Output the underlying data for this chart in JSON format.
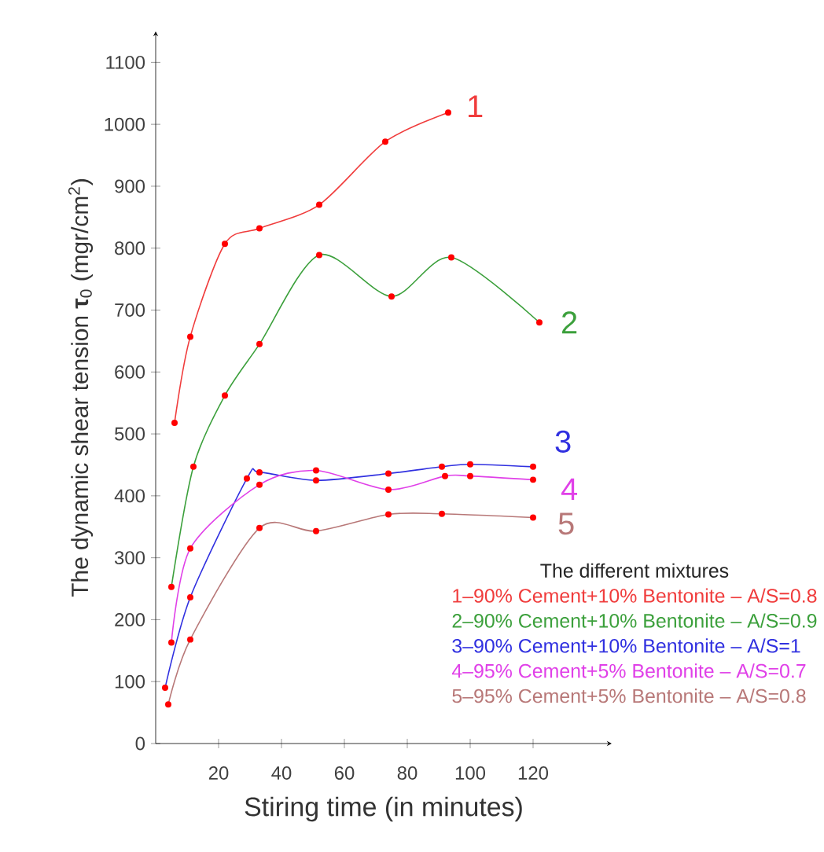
{
  "chart_data": {
    "type": "line",
    "xlabel": "Stiring time (in minutes)",
    "ylabel": "The dynamic shear tension **τ**$_{0}$ (mgr/cm$^{2}$)",
    "legend_title": "The different mixtures",
    "legend": "bottom right",
    "marker": "circle",
    "line_style": "solid",
    "grid": false,
    "xlim": [
      0,
      145
    ],
    "ylim": [
      0,
      1150
    ],
    "xticks": [
      20,
      40,
      60,
      80,
      100,
      120
    ],
    "yticks": [
      0,
      100,
      200,
      300,
      400,
      500,
      600,
      700,
      800,
      900,
      1000,
      1100
    ],
    "series": [
      {
        "name": "1–90% Cement+10% Bentonite – A/S=0.8",
        "color": "#f03c3c",
        "x": [
          6,
          11,
          22,
          33,
          52,
          73,
          93
        ],
        "values": [
          518,
          657,
          807,
          832,
          870,
          972,
          1019
        ]
      },
      {
        "name": "2–90% Cement+10% Bentonite – A/S=0.9",
        "color": "#3ca03c",
        "x": [
          5,
          12,
          22,
          33,
          52,
          75,
          94,
          122
        ],
        "values": [
          253,
          447,
          562,
          645,
          789,
          722,
          785,
          680
        ]
      },
      {
        "name": "3–90% Cement+10% Bentonite – A/S=1",
        "color": "#3030e0",
        "x": [
          3,
          11,
          29,
          33,
          51,
          74,
          91,
          100,
          120
        ],
        "values": [
          90,
          236,
          428,
          438,
          425,
          436,
          447,
          451,
          447
        ]
      },
      {
        "name": "4–95% Cement+5% Bentonite – A/S=0.7",
        "color": "#e040e8",
        "x": [
          5,
          11,
          33,
          51,
          74,
          92,
          100,
          120
        ],
        "values": [
          163,
          315,
          418,
          441,
          410,
          432,
          432,
          426
        ]
      },
      {
        "name": "5–95% Cement+5% Bentonite – A/S=0.8",
        "color": "#b87878",
        "x": [
          4,
          11,
          33,
          51,
          74,
          91,
          120
        ],
        "values": [
          63,
          168,
          348,
          343,
          370,
          371,
          365
        ]
      }
    ],
    "annotations": [
      "1",
      "2",
      "3",
      "4",
      "5"
    ]
  }
}
